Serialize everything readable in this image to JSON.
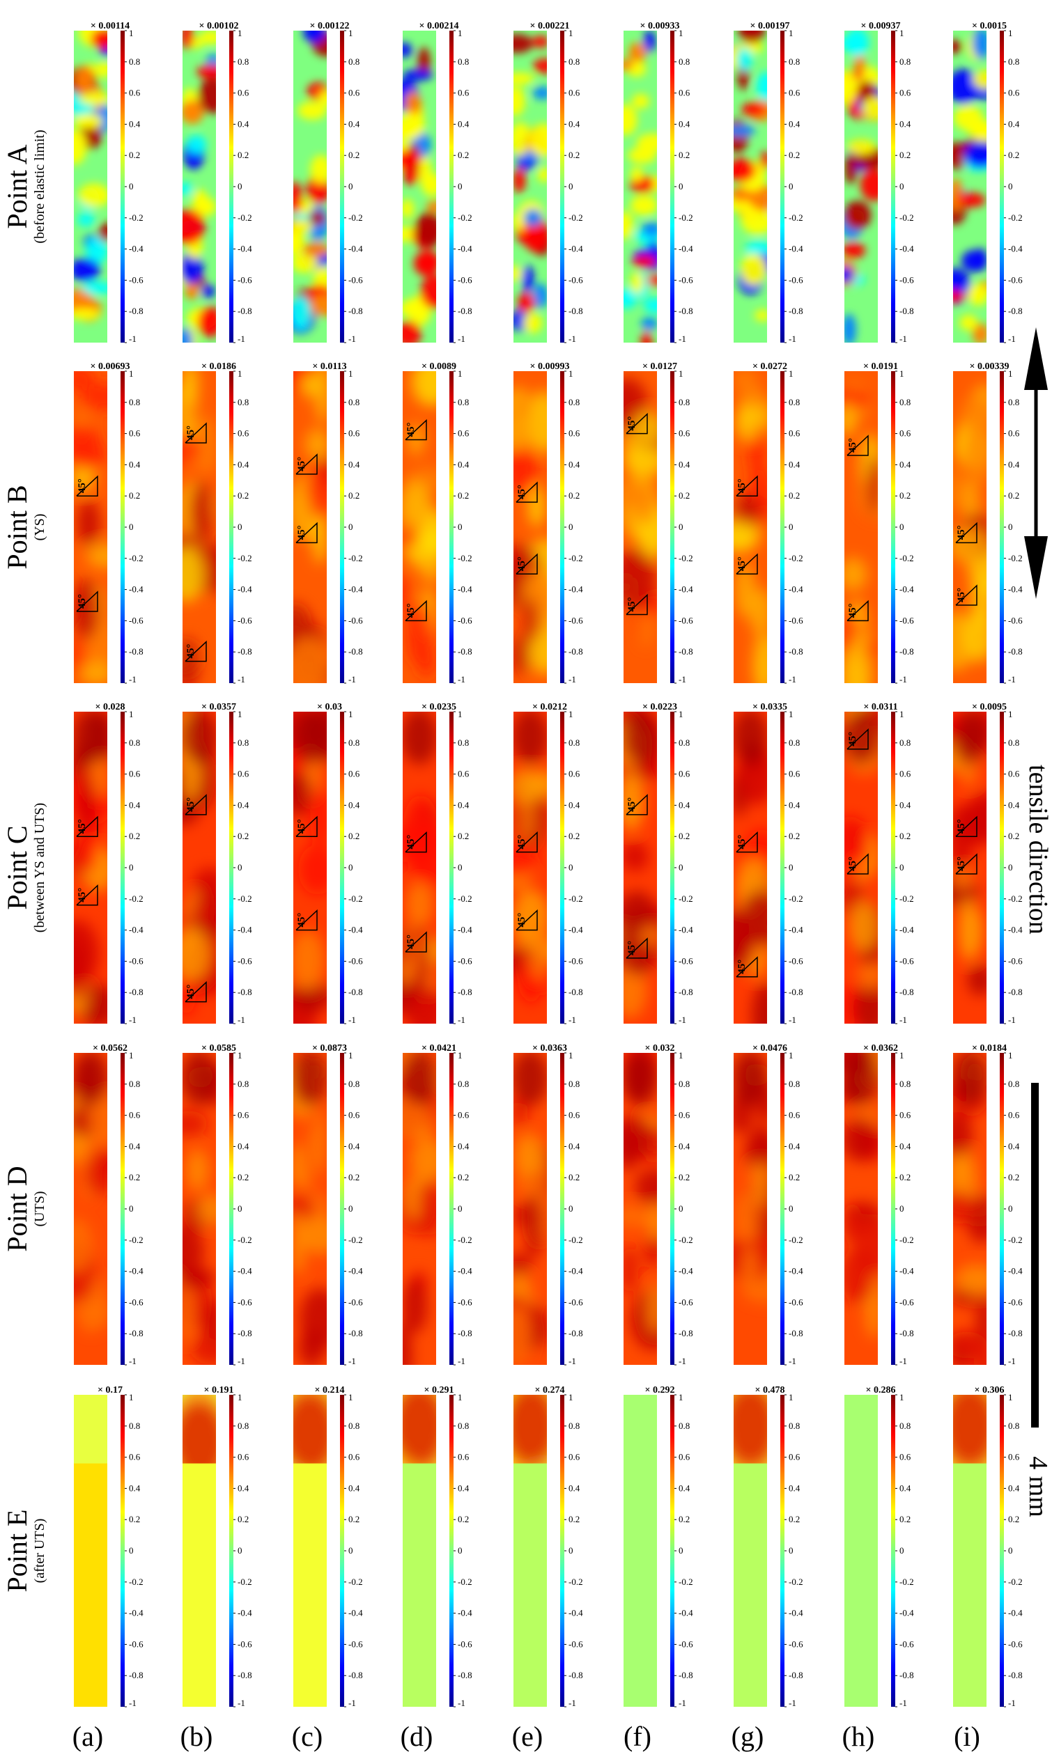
{
  "figure": {
    "rows": [
      {
        "label": "Point A",
        "sublabel": "(before elastic limit)",
        "pattern": "A",
        "multipliers": [
          "× 0.00114",
          "× 0.00102",
          "× 0.00122",
          "× 0.00214",
          "× 0.00221",
          "× 0.00933",
          "× 0.00197",
          "× 0.00937",
          "× 0.0015"
        ]
      },
      {
        "label": "Point B",
        "sublabel": "(YS)",
        "pattern": "B",
        "multipliers": [
          "× 0.00693",
          "× 0.0186",
          "× 0.0113",
          "× 0.0089",
          "× 0.00993",
          "× 0.0127",
          "× 0.0272",
          "× 0.0191",
          "× 0.00339"
        ]
      },
      {
        "label": "Point C",
        "sublabel": "(between YS and UTS)",
        "pattern": "C",
        "multipliers": [
          "× 0.028",
          "× 0.0357",
          "× 0.03",
          "× 0.0235",
          "× 0.0212",
          "× 0.0223",
          "× 0.0335",
          "× 0.0311",
          "× 0.0095"
        ]
      },
      {
        "label": "Point D",
        "sublabel": "(UTS)",
        "pattern": "D",
        "multipliers": [
          "× 0.0562",
          "× 0.0585",
          "× 0.0873",
          "× 0.0421",
          "× 0.0363",
          "× 0.032",
          "× 0.0476",
          "× 0.0362",
          "× 0.0184"
        ]
      },
      {
        "label": "Point E",
        "sublabel": "(after UTS)",
        "pattern": "E",
        "multipliers": [
          "× 0.17",
          "× 0.191",
          "× 0.214",
          "× 0.291",
          "× 0.274",
          "× 0.292",
          "× 0.478",
          "× 0.286",
          "× 0.306"
        ]
      }
    ],
    "columns": [
      "(a)",
      "(b)",
      "(c)",
      "(d)",
      "(e)",
      "(f)",
      "(g)",
      "(h)",
      "(i)"
    ],
    "colorbar_ticks": [
      "1",
      "0.8",
      "0.6",
      "0.4",
      "0.2",
      "0",
      "-0.2",
      "-0.4",
      "-0.6",
      "-0.8",
      "-1"
    ],
    "angle_label": "45°",
    "shear_band_marks": {
      "B": [
        [
          0.4,
          0.77
        ],
        [
          0.23,
          0.93
        ],
        [
          0.33,
          0.55
        ],
        [
          0.22,
          0.8
        ],
        [
          0.42,
          0.65
        ],
        [
          0.2,
          0.78
        ],
        [
          0.4,
          0.65
        ],
        [
          0.27,
          0.8
        ],
        [
          0.55,
          0.75
        ]
      ],
      "C": [
        [
          0.4,
          0.62
        ],
        [
          0.33,
          0.93
        ],
        [
          0.4,
          0.7
        ],
        [
          0.45,
          0.77
        ],
        [
          0.45,
          0.7
        ],
        [
          0.33,
          0.79
        ],
        [
          0.45,
          0.85
        ],
        [
          0.12,
          0.52
        ],
        [
          0.4,
          0.52
        ]
      ]
    },
    "tensile_direction_label": "tensile direction",
    "scale_bar_label": "4 mm",
    "colors": {
      "jet": [
        "#00008f",
        "#0000ff",
        "#0080ff",
        "#00ffff",
        "#80ff80",
        "#ffff00",
        "#ff8000",
        "#ff0000",
        "#800000"
      ],
      "ink": "#000000"
    }
  }
}
